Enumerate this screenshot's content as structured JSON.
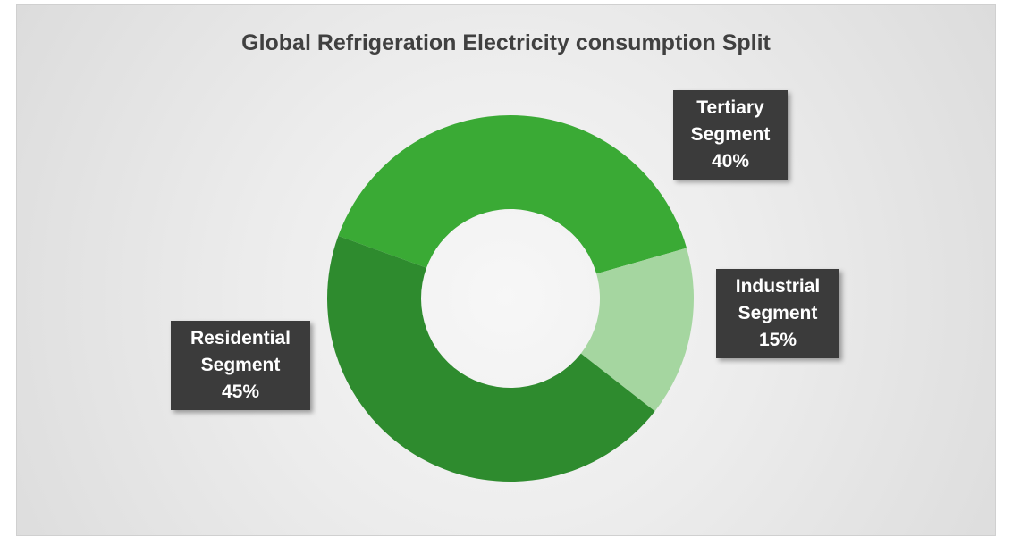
{
  "chart_data": {
    "type": "donut",
    "title": "Global Refrigeration Electricity consumption Split",
    "categories": [
      "Tertiary Segment",
      "Industrial Segment",
      "Residential Segment"
    ],
    "values": [
      40,
      15,
      45
    ],
    "value_labels": [
      "40%",
      "15%",
      "45%"
    ],
    "colors": [
      "#3aaa35",
      "#a5d6a0",
      "#2e8b2e"
    ]
  }
}
